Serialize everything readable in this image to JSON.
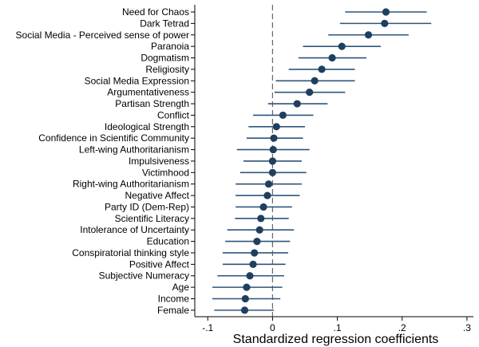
{
  "chart_data": {
    "type": "scatter",
    "subtype": "coefficient-plot",
    "title": "",
    "xlabel": "Standardized regression coefficients",
    "ylabel": "",
    "xlim": [
      -0.12,
      0.31
    ],
    "x_ticks": [
      -0.1,
      0,
      0.1,
      0.2,
      0.3
    ],
    "x_tick_labels": [
      "-.1",
      "0",
      ".1",
      ".2",
      ".3"
    ],
    "reference_line": {
      "x": 0,
      "style": "dashed"
    },
    "grid": false,
    "legend": "none",
    "colors": {
      "point": "#1f3f5f",
      "interval": "#2f557a",
      "reference": "#666666"
    },
    "categories": [
      "Need for Chaos",
      "Dark Tetrad",
      "Social Media - Perceived sense of power",
      "Paranoia",
      "Dogmatism",
      "Religiosity",
      "Social Media Expression",
      "Argumentativeness",
      "Partisan Strength",
      "Conflict",
      "Ideological Strength",
      "Confidence in Scientific Community",
      "Left-wing Authoritarianism",
      "Impulsiveness",
      "Victimhood",
      "Right-wing Authoritarianism",
      "Negative Affect",
      "Party ID (Dem-Rep)",
      "Scientific Literacy",
      "Intolerance of Uncertainty",
      "Education",
      "Conspiratorial thinking style",
      "Positive Affect",
      "Subjective Numeracy",
      "Age",
      "Income",
      "Female"
    ],
    "estimates": [
      0.175,
      0.173,
      0.148,
      0.107,
      0.092,
      0.076,
      0.065,
      0.057,
      0.038,
      0.016,
      0.006,
      0.002,
      0.001,
      0.0,
      0.0,
      -0.006,
      -0.008,
      -0.014,
      -0.018,
      -0.02,
      -0.024,
      -0.028,
      -0.03,
      -0.035,
      -0.04,
      -0.042,
      -0.043
    ],
    "ci_lower": [
      0.112,
      0.104,
      0.086,
      0.047,
      0.04,
      0.025,
      0.005,
      0.003,
      -0.007,
      -0.03,
      -0.037,
      -0.04,
      -0.055,
      -0.045,
      -0.05,
      -0.057,
      -0.057,
      -0.057,
      -0.058,
      -0.07,
      -0.073,
      -0.077,
      -0.077,
      -0.085,
      -0.093,
      -0.093,
      -0.09
    ],
    "ci_upper": [
      0.238,
      0.245,
      0.21,
      0.167,
      0.145,
      0.127,
      0.127,
      0.112,
      0.085,
      0.063,
      0.05,
      0.047,
      0.057,
      0.045,
      0.052,
      0.045,
      0.042,
      0.03,
      0.025,
      0.033,
      0.027,
      0.024,
      0.02,
      0.018,
      0.015,
      0.012,
      0.002
    ]
  }
}
